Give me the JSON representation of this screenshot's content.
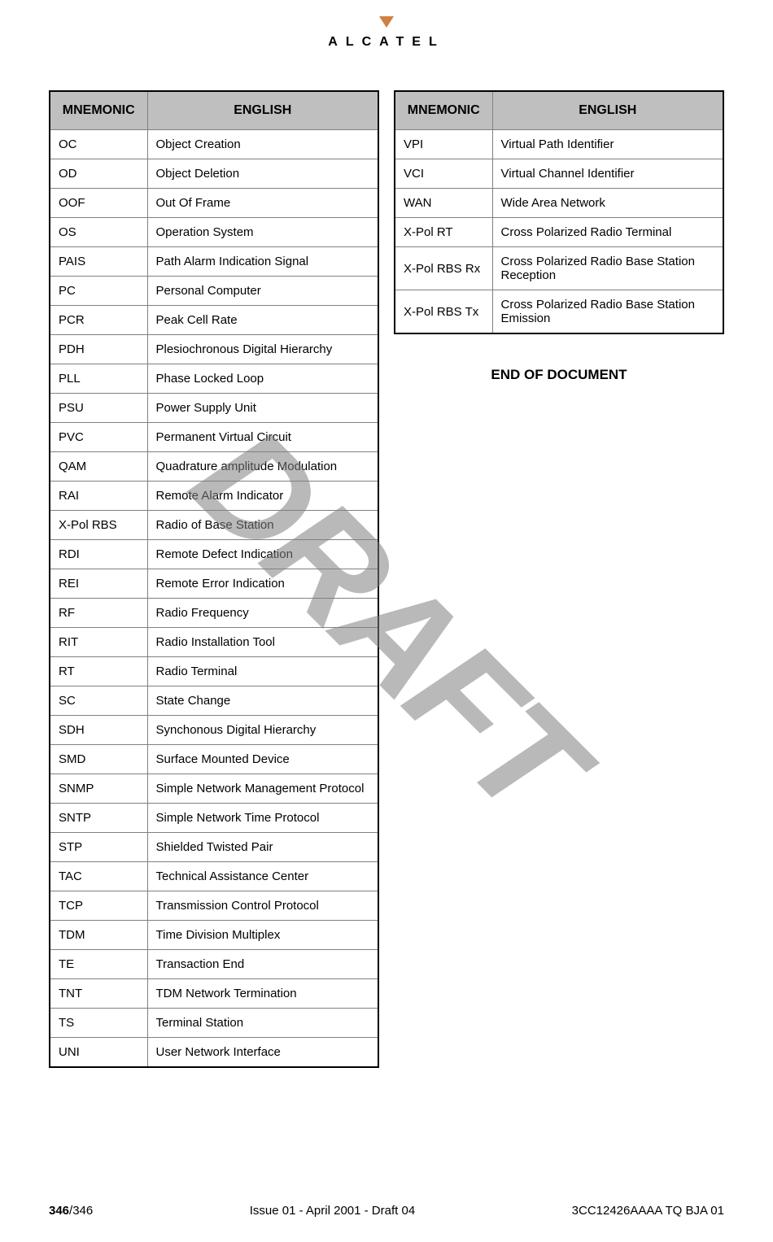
{
  "brand": "ALCATEL",
  "watermark": "DRAFT",
  "end_text": "END OF DOCUMENT",
  "footer": {
    "page_current": "346",
    "page_total": "/346",
    "center": "Issue 01 - April 2001 - Draft 04",
    "right": "3CC12426AAAA TQ BJA 01"
  },
  "headers": {
    "col1": "MNEMONIC",
    "col2": "ENGLISH"
  },
  "left_table": [
    [
      "OC",
      "Object Creation"
    ],
    [
      "OD",
      "Object Deletion"
    ],
    [
      "OOF",
      "Out Of Frame"
    ],
    [
      "OS",
      "Operation System"
    ],
    [
      "PAIS",
      "Path Alarm Indication Signal"
    ],
    [
      "PC",
      "Personal Computer"
    ],
    [
      "PCR",
      "Peak Cell Rate"
    ],
    [
      "PDH",
      "Plesiochronous Digital Hierarchy"
    ],
    [
      "PLL",
      "Phase Locked Loop"
    ],
    [
      "PSU",
      "Power Supply Unit"
    ],
    [
      "PVC",
      "Permanent Virtual Circuit"
    ],
    [
      "QAM",
      "Quadrature amplitude Modulation"
    ],
    [
      "RAI",
      "Remote Alarm Indicator"
    ],
    [
      "X-Pol RBS",
      "Radio of Base Station"
    ],
    [
      "RDI",
      "Remote Defect Indication"
    ],
    [
      "REI",
      "Remote Error Indication"
    ],
    [
      "RF",
      "Radio Frequency"
    ],
    [
      "RIT",
      "Radio Installation Tool"
    ],
    [
      "RT",
      "Radio Terminal"
    ],
    [
      "SC",
      "State Change"
    ],
    [
      "SDH",
      "Synchonous Digital Hierarchy"
    ],
    [
      "SMD",
      "Surface Mounted Device"
    ],
    [
      "SNMP",
      "Simple Network Management Protocol"
    ],
    [
      "SNTP",
      "Simple Network Time Protocol"
    ],
    [
      "STP",
      "Shielded Twisted Pair"
    ],
    [
      "TAC",
      "Technical Assistance Center"
    ],
    [
      "TCP",
      "Transmission Control Protocol"
    ],
    [
      "TDM",
      "Time Division Multiplex"
    ],
    [
      "TE",
      "Transaction End"
    ],
    [
      "TNT",
      "TDM Network Termination"
    ],
    [
      "TS",
      "Terminal Station"
    ],
    [
      "UNI",
      "User Network Interface"
    ]
  ],
  "right_table": [
    [
      "VPI",
      "Virtual Path Identifier"
    ],
    [
      "VCI",
      "Virtual Channel Identifier"
    ],
    [
      "WAN",
      "Wide Area Network"
    ],
    [
      "X-Pol RT",
      "Cross Polarized Radio Terminal"
    ],
    [
      "X-Pol RBS Rx",
      "Cross Polarized Radio Base Station Reception"
    ],
    [
      "X-Pol RBS Tx",
      "Cross Polarized Radio Base Station Emission"
    ]
  ]
}
